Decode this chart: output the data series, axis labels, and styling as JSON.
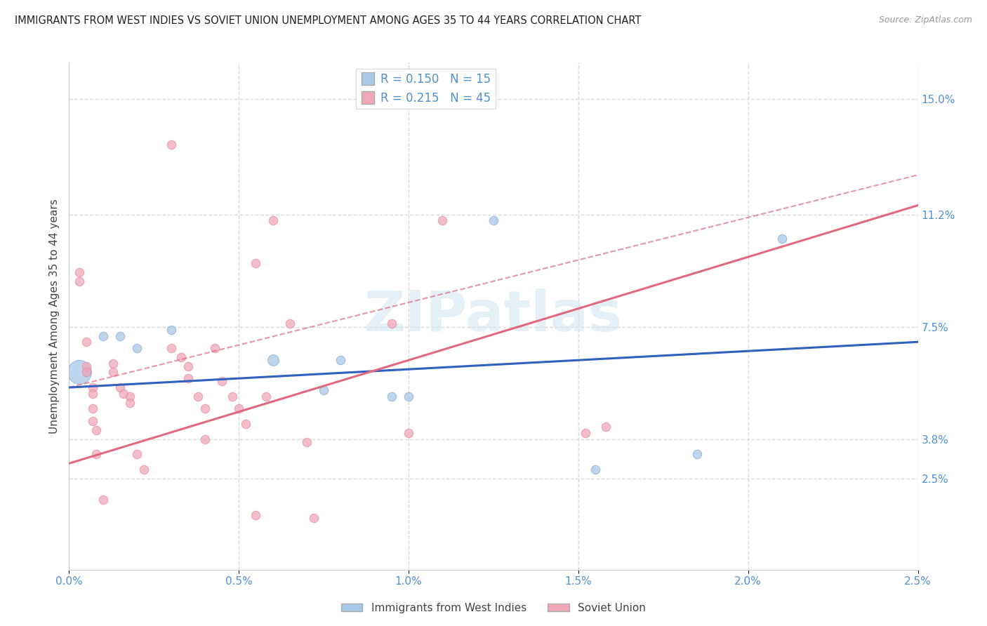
{
  "title": "IMMIGRANTS FROM WEST INDIES VS SOVIET UNION UNEMPLOYMENT AMONG AGES 35 TO 44 YEARS CORRELATION CHART",
  "source": "Source: ZipAtlas.com",
  "ylabel": "Unemployment Among Ages 35 to 44 years",
  "legend_blue_r": "R = 0.150",
  "legend_blue_n": "N = 15",
  "legend_pink_r": "R = 0.215",
  "legend_pink_n": "N = 45",
  "watermark": "ZIPatlas",
  "right_ytick_labels": [
    "15.0%",
    "11.2%",
    "7.5%",
    "3.8%",
    "2.5%"
  ],
  "right_ytick_values": [
    0.15,
    0.112,
    0.075,
    0.038,
    0.025
  ],
  "xlim": [
    0.0,
    0.025
  ],
  "ylim": [
    -0.005,
    0.162
  ],
  "xtick_labels": [
    "0.0%",
    "0.5%",
    "1.0%",
    "1.5%",
    "2.0%",
    "2.5%"
  ],
  "xtick_values": [
    0.0,
    0.005,
    0.01,
    0.015,
    0.02,
    0.025
  ],
  "blue_color": "#a8c8e8",
  "pink_color": "#f0a8b8",
  "blue_line_color": "#3060c0",
  "pink_line_color": "#e06880",
  "pink_dash_color": "#e8a0b0",
  "grid_color": "#d8d8e0",
  "background_color": "#ffffff",
  "blue_points": [
    [
      0.0005,
      0.06
    ],
    [
      0.001,
      0.072
    ],
    [
      0.0015,
      0.072
    ],
    [
      0.002,
      0.068
    ],
    [
      0.003,
      0.074
    ],
    [
      0.006,
      0.064
    ],
    [
      0.0075,
      0.054
    ],
    [
      0.008,
      0.064
    ],
    [
      0.0095,
      0.052
    ],
    [
      0.01,
      0.052
    ],
    [
      0.0125,
      0.11
    ],
    [
      0.0155,
      0.028
    ],
    [
      0.0185,
      0.033
    ],
    [
      0.021,
      0.104
    ],
    [
      0.0003,
      0.06
    ]
  ],
  "blue_sizes": [
    80,
    80,
    80,
    80,
    80,
    130,
    80,
    80,
    80,
    80,
    80,
    80,
    80,
    80,
    600
  ],
  "pink_points": [
    [
      0.0003,
      0.093
    ],
    [
      0.0003,
      0.09
    ],
    [
      0.0005,
      0.062
    ],
    [
      0.0005,
      0.07
    ],
    [
      0.0005,
      0.06
    ],
    [
      0.0007,
      0.055
    ],
    [
      0.0007,
      0.053
    ],
    [
      0.0007,
      0.048
    ],
    [
      0.0007,
      0.044
    ],
    [
      0.0008,
      0.041
    ],
    [
      0.0008,
      0.033
    ],
    [
      0.001,
      0.018
    ],
    [
      0.0013,
      0.063
    ],
    [
      0.0013,
      0.06
    ],
    [
      0.0015,
      0.055
    ],
    [
      0.0016,
      0.053
    ],
    [
      0.0018,
      0.052
    ],
    [
      0.0018,
      0.05
    ],
    [
      0.002,
      0.033
    ],
    [
      0.0022,
      0.028
    ],
    [
      0.003,
      0.135
    ],
    [
      0.003,
      0.068
    ],
    [
      0.0033,
      0.065
    ],
    [
      0.0035,
      0.062
    ],
    [
      0.0035,
      0.058
    ],
    [
      0.0038,
      0.052
    ],
    [
      0.004,
      0.048
    ],
    [
      0.004,
      0.038
    ],
    [
      0.0043,
      0.068
    ],
    [
      0.0045,
      0.057
    ],
    [
      0.0048,
      0.052
    ],
    [
      0.005,
      0.048
    ],
    [
      0.0052,
      0.043
    ],
    [
      0.0055,
      0.013
    ],
    [
      0.0055,
      0.096
    ],
    [
      0.0058,
      0.052
    ],
    [
      0.006,
      0.11
    ],
    [
      0.0065,
      0.076
    ],
    [
      0.007,
      0.037
    ],
    [
      0.0072,
      0.012
    ],
    [
      0.0095,
      0.076
    ],
    [
      0.01,
      0.04
    ],
    [
      0.011,
      0.11
    ],
    [
      0.0152,
      0.04
    ],
    [
      0.0158,
      0.042
    ]
  ],
  "blue_trend": [
    0.055,
    0.07
  ],
  "pink_trend_solid": [
    0.03,
    0.115
  ],
  "pink_trend_dashed": [
    0.055,
    0.125
  ]
}
